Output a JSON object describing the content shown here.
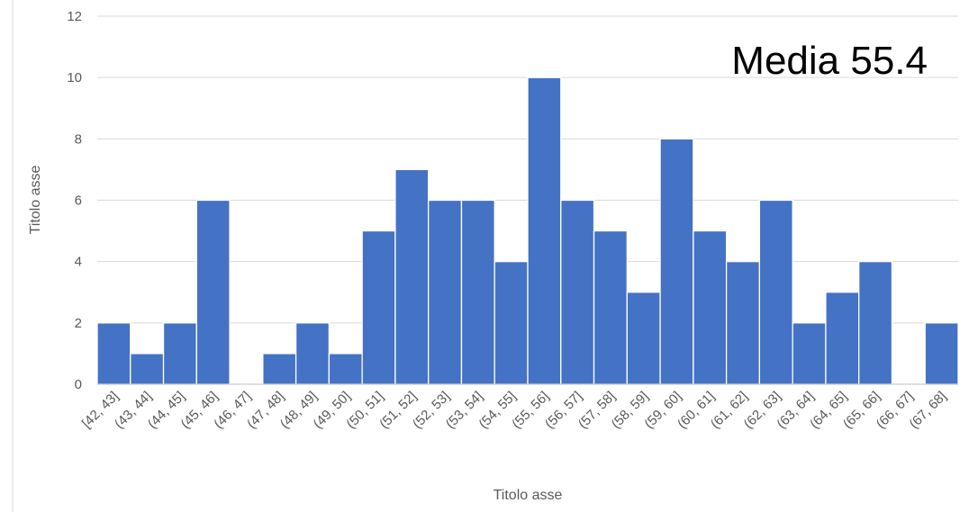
{
  "chart_data": {
    "type": "bar",
    "categories": [
      "[42, 43]",
      "(43, 44]",
      "(44, 45]",
      "(45, 46]",
      "(46, 47]",
      "(47, 48]",
      "(48, 49]",
      "(49, 50]",
      "(50, 51]",
      "(51, 52]",
      "(52, 53]",
      "(53, 54]",
      "(54, 55]",
      "(55, 56]",
      "(56, 57]",
      "(57, 58]",
      "(58, 59]",
      "(59, 60]",
      "(60, 61]",
      "(61, 62]",
      "(62, 63]",
      "(63, 64]",
      "(64, 65]",
      "(65, 66]",
      "(66, 67]",
      "(67, 68]"
    ],
    "values": [
      2,
      1,
      2,
      6,
      0,
      1,
      2,
      1,
      5,
      7,
      6,
      6,
      4,
      10,
      6,
      5,
      3,
      8,
      5,
      4,
      6,
      2,
      3,
      4,
      0,
      2
    ],
    "xlabel": "Titolo asse",
    "ylabel": "Titolo asse",
    "ylim": [
      0,
      12
    ],
    "yticks": [
      0,
      2,
      4,
      6,
      8,
      10,
      12
    ],
    "grid": true,
    "bar_color": "#4472C4",
    "grid_color": "#D9D9D9",
    "annotation": "Media 55.4"
  }
}
